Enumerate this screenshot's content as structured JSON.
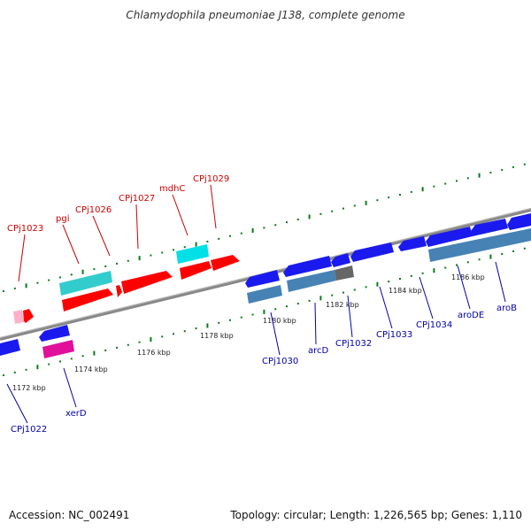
{
  "title": "Chlamydophila pneumoniae J138, complete genome",
  "footer": {
    "accession": "Accession: NC_002491",
    "stats": "Topology: circular; Length: 1,226,565 bp; Genes: 1,110"
  },
  "colors": {
    "top_strand_label": "#cc0000",
    "bottom_strand_label": "#0000aa",
    "tick": "#0a7a1a",
    "backbone": "#888888"
  },
  "scale_labels": [
    "1172 kbp",
    "1174 kbp",
    "1176 kbp",
    "1178 kbp",
    "1180 kbp",
    "1182 kbp",
    "1184 kbp",
    "1186 kbp"
  ],
  "top_genes": [
    {
      "name": "CPj1023"
    },
    {
      "name": "pgi"
    },
    {
      "name": "CPj1026"
    },
    {
      "name": "CPj1027"
    },
    {
      "name": "mdhC"
    },
    {
      "name": "CPj1029"
    }
  ],
  "bottom_genes": [
    {
      "name": "CPj1022"
    },
    {
      "name": "xerD"
    },
    {
      "name": "CPj1030"
    },
    {
      "name": "arcD"
    },
    {
      "name": "CPj1032"
    },
    {
      "name": "CPj1033"
    },
    {
      "name": "CPj1034"
    },
    {
      "name": "aroDE"
    },
    {
      "name": "aroB"
    }
  ]
}
